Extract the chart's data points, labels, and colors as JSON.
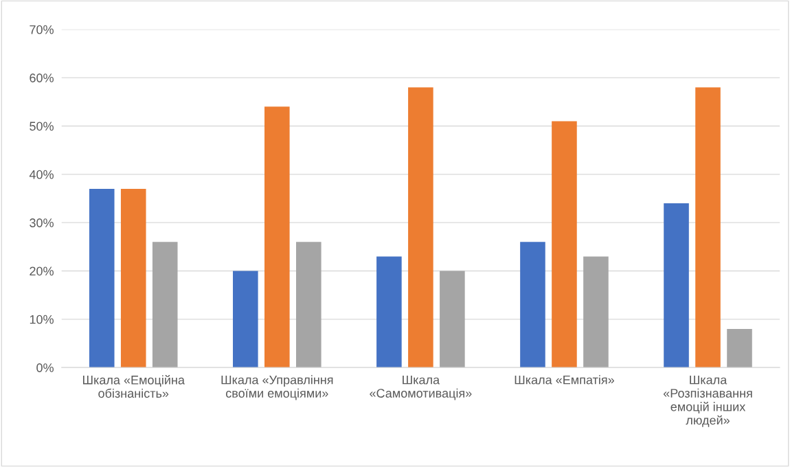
{
  "chart_data": {
    "type": "bar",
    "categories": [
      "Шкала «Емоційна\nобізнаність»",
      "Шкала «Управління\nсвоїми емоціями»",
      "Шкала\n«Самомотивація»",
      "Шкала «Емпатія»",
      "Шкала\n«Розпізнавання\nемоцій інших\nлюдей»"
    ],
    "series": [
      {
        "color": "#4472c4",
        "values": [
          37,
          20,
          23,
          26,
          34
        ]
      },
      {
        "color": "#ed7d31",
        "values": [
          37,
          54,
          58,
          51,
          58
        ]
      },
      {
        "color": "#a5a5a5",
        "values": [
          26,
          26,
          20,
          23,
          8
        ]
      }
    ],
    "ylim": [
      0,
      70
    ],
    "yticks": [
      {
        "value": 0,
        "label": "0%"
      },
      {
        "value": 10,
        "label": "10%"
      },
      {
        "value": 20,
        "label": "20%"
      },
      {
        "value": 30,
        "label": "30%"
      },
      {
        "value": 40,
        "label": "40%"
      },
      {
        "value": 50,
        "label": "50%"
      },
      {
        "value": 60,
        "label": "60%"
      },
      {
        "value": 70,
        "label": "70%"
      }
    ],
    "grid": "y",
    "legend": false
  }
}
